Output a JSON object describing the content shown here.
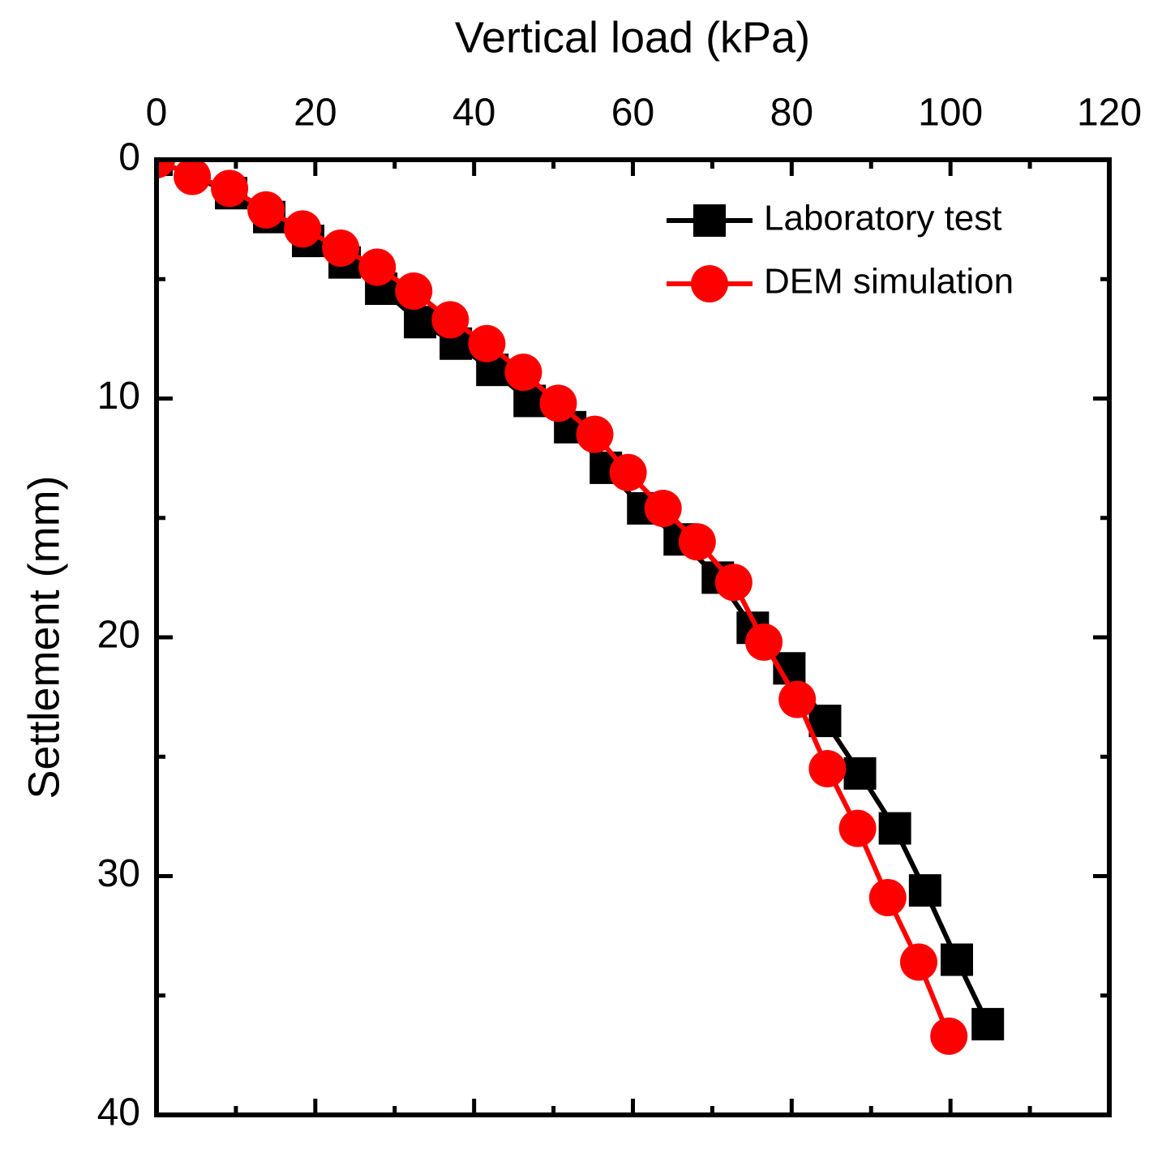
{
  "chart_data": {
    "type": "line",
    "xlabel": "Vertical load (kPa)",
    "ylabel": "Settlement (mm)",
    "xlim": [
      0,
      120
    ],
    "xticks": [
      0,
      20,
      40,
      60,
      80,
      100,
      120
    ],
    "ylim": [
      0,
      40
    ],
    "yticks": [
      0,
      10,
      20,
      30,
      40
    ],
    "x_axis_position": "top",
    "y_inverted": true,
    "legend": "upper right",
    "series": [
      {
        "name": "Laboratory test",
        "color": "#000000",
        "marker": "square",
        "x": [
          0,
          9.4,
          14.2,
          19.1,
          23.7,
          28.3,
          33.2,
          37.7,
          42.3,
          47.0,
          52.1,
          56.6,
          61.3,
          65.9,
          70.7,
          75.1,
          79.7,
          84.2,
          88.6,
          93.0,
          96.8,
          100.8,
          104.7
        ],
        "values": [
          0,
          1.4,
          2.4,
          3.4,
          4.3,
          5.4,
          6.8,
          7.7,
          8.8,
          10.1,
          11.2,
          12.9,
          14.6,
          15.9,
          17.5,
          19.6,
          21.3,
          23.5,
          25.7,
          28.0,
          30.6,
          33.5,
          36.2
        ]
      },
      {
        "name": "DEM simulation",
        "color": "#ff0000",
        "marker": "circle",
        "x": [
          0,
          4.5,
          9.2,
          13.8,
          18.4,
          23.2,
          27.8,
          32.4,
          37.0,
          41.6,
          46.2,
          50.6,
          55.2,
          59.4,
          63.8,
          68.1,
          72.7,
          76.5,
          80.7,
          84.5,
          88.3,
          92.1,
          96.0,
          99.8
        ],
        "values": [
          0,
          0.7,
          1.2,
          2.1,
          2.9,
          3.7,
          4.5,
          5.5,
          6.7,
          7.7,
          8.9,
          10.2,
          11.5,
          13.1,
          14.6,
          16.0,
          17.7,
          20.2,
          22.6,
          25.5,
          28.0,
          30.9,
          33.6,
          36.7
        ]
      }
    ]
  }
}
